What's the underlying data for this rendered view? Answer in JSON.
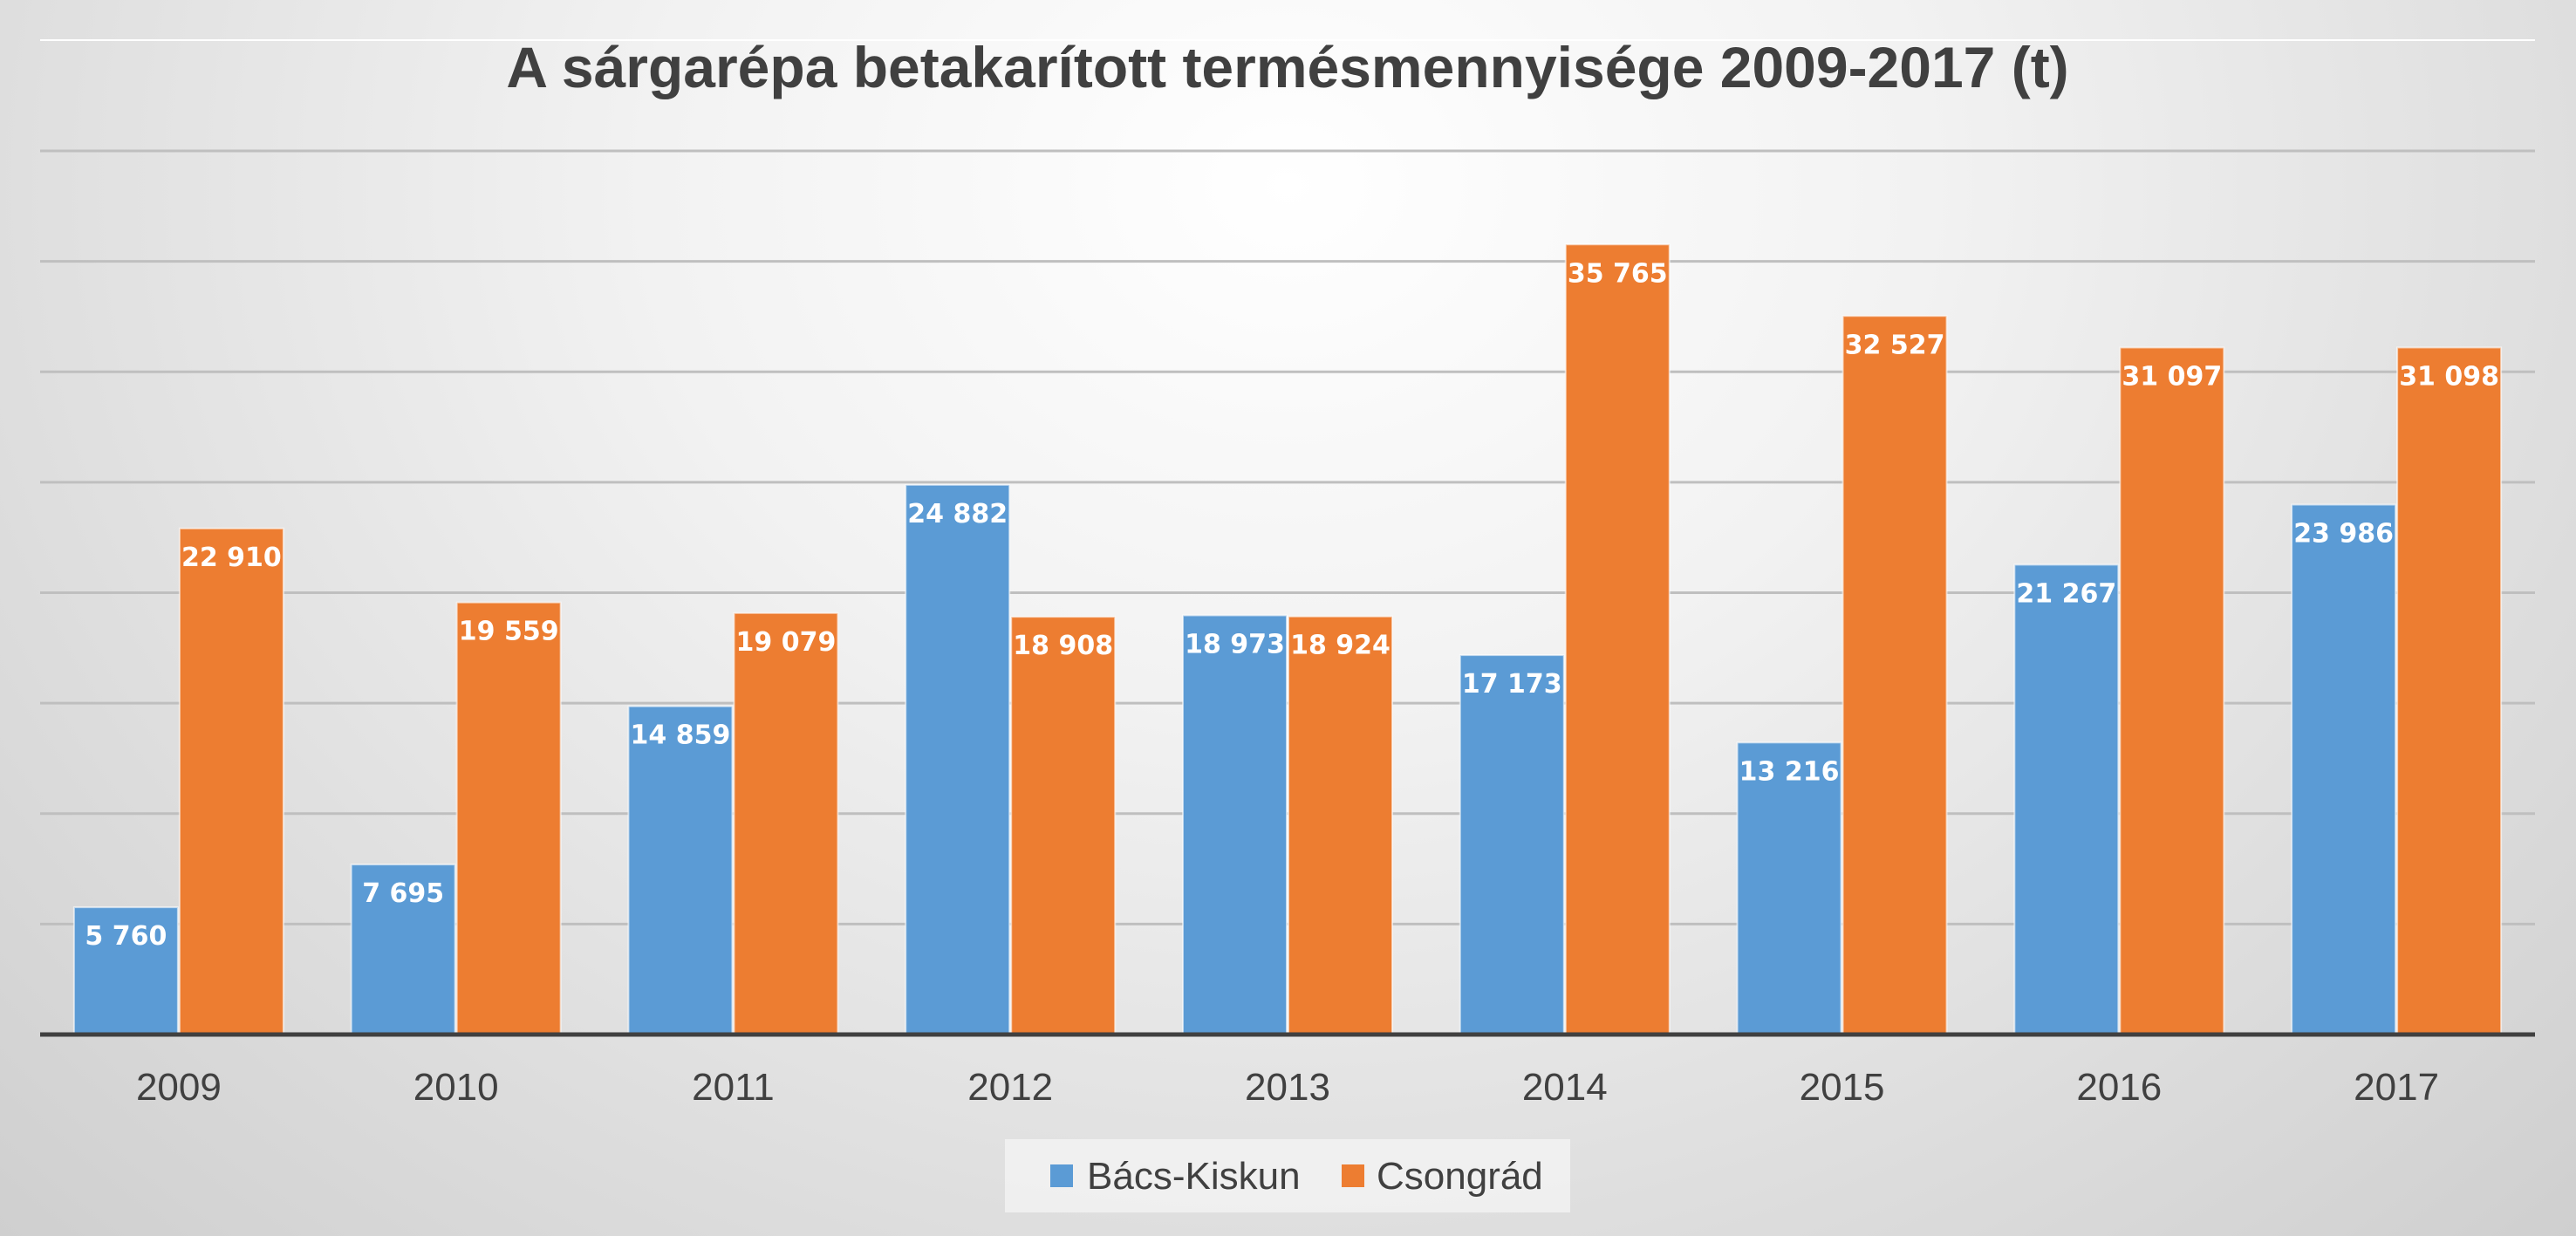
{
  "chart_data": {
    "type": "bar",
    "title": "A sárgarépa betakarított termésmennyisége 2009-2017 (t)",
    "categories": [
      "2009",
      "2010",
      "2011",
      "2012",
      "2013",
      "2014",
      "2015",
      "2016",
      "2017"
    ],
    "series": [
      {
        "name": "Bács-Kiskun",
        "color": "#5B9BD5",
        "values": [
          5760,
          7695,
          14859,
          24882,
          18973,
          17173,
          13216,
          21267,
          23986
        ],
        "labels": [
          "5 760",
          "7 695",
          "14 859",
          "24 882",
          "18 973",
          "17 173",
          "13 216",
          "21 267",
          "23 986"
        ]
      },
      {
        "name": "Csongrád",
        "color": "#ED7D31",
        "values": [
          22910,
          19559,
          19079,
          18908,
          18924,
          35765,
          32527,
          31097,
          31098
        ],
        "labels": [
          "22 910",
          "19 559",
          "19 079",
          "18 908",
          "18 924",
          "35 765",
          "32 527",
          "31 097",
          "31 098"
        ]
      }
    ],
    "ylim": [
      0,
      40000
    ],
    "gridlines": true,
    "y_tick_labels_shown": false,
    "data_labels": "inside-end",
    "legend_position": "bottom"
  }
}
